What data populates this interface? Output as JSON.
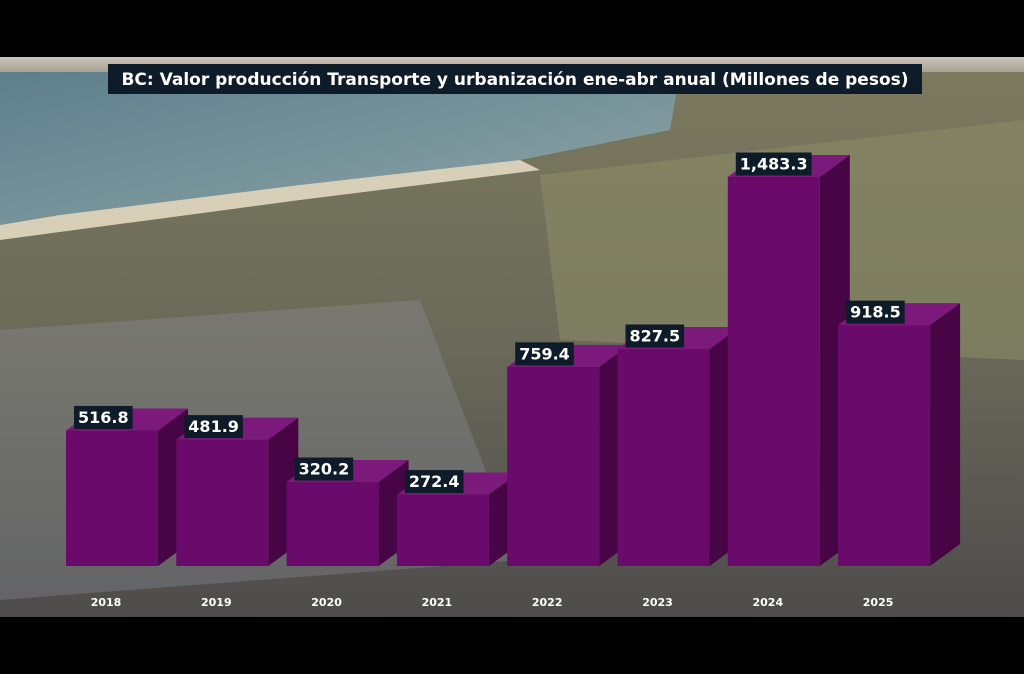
{
  "chart_data": {
    "type": "bar3d",
    "title": "BC: Valor producción Transporte y urbanización ene-abr anual (Millones de pesos)",
    "categories": [
      "2018",
      "2019",
      "2020",
      "2021",
      "2022",
      "2023",
      "2024",
      "2025"
    ],
    "values": [
      516.8,
      481.9,
      320.2,
      272.4,
      759.4,
      827.5,
      1483.3,
      918.5
    ],
    "value_labels": [
      "516.8",
      "481.9",
      "320.2",
      "272.4",
      "759.4",
      "827.5",
      "1,483.3",
      "918.5"
    ],
    "color": "#6a0a6a"
  }
}
